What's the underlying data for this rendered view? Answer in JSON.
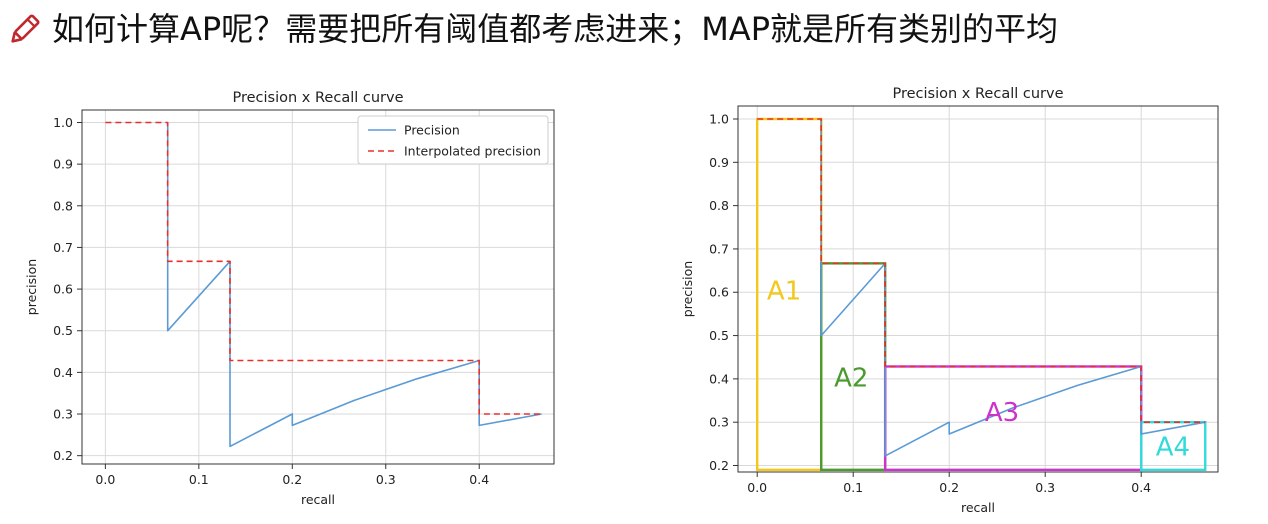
{
  "header": {
    "title": "如何计算AP呢？需要把所有阈值都考虑进来；MAP就是所有类别的平均",
    "icon": "pencil-icon"
  },
  "chart_data": [
    {
      "type": "line",
      "title": "Precision x Recall curve",
      "xlabel": "recall",
      "ylabel": "precision",
      "xlim": [
        -0.025,
        0.48
      ],
      "ylim": [
        0.18,
        1.03
      ],
      "xticks": [
        0.0,
        0.1,
        0.2,
        0.3,
        0.4
      ],
      "xticklabels": [
        "0.0",
        "0.1",
        "0.2",
        "0.3",
        "0.4"
      ],
      "yticks": [
        0.2,
        0.3,
        0.4,
        0.5,
        0.6,
        0.7,
        0.8,
        0.9,
        1.0
      ],
      "yticklabels": [
        "0.2",
        "0.3",
        "0.4",
        "0.5",
        "0.6",
        "0.7",
        "0.8",
        "0.9",
        "1.0"
      ],
      "grid": true,
      "legend": "upper-right",
      "series": [
        {
          "name": "Precision",
          "style": "solid",
          "color": "#5b9bd5",
          "x": [
            0.0667,
            0.0667,
            0.1333,
            0.1333,
            0.1333,
            0.2,
            0.2,
            0.2667,
            0.3333,
            0.4,
            0.4,
            0.4667
          ],
          "y": [
            1.0,
            0.5,
            0.6667,
            0.4286,
            0.2222,
            0.3,
            0.2727,
            0.3333,
            0.3846,
            0.4286,
            0.2727,
            0.3
          ]
        },
        {
          "name": "Interpolated precision",
          "style": "dashed",
          "color": "#e8302b",
          "x": [
            0.0,
            0.0667,
            0.0667,
            0.1333,
            0.1333,
            0.4,
            0.4,
            0.4667
          ],
          "y": [
            1.0,
            1.0,
            0.6667,
            0.6667,
            0.4286,
            0.4286,
            0.3,
            0.3
          ]
        }
      ]
    },
    {
      "type": "line",
      "title": "Precision x Recall curve",
      "xlabel": "recall",
      "ylabel": "precision",
      "xlim": [
        -0.02,
        0.48
      ],
      "ylim": [
        0.185,
        1.03
      ],
      "xticks": [
        0.0,
        0.1,
        0.2,
        0.3,
        0.4
      ],
      "xticklabels": [
        "0.0",
        "0.1",
        "0.2",
        "0.3",
        "0.4"
      ],
      "yticks": [
        0.2,
        0.3,
        0.4,
        0.5,
        0.6,
        0.7,
        0.8,
        0.9,
        1.0
      ],
      "yticklabels": [
        "0.2",
        "0.3",
        "0.4",
        "0.5",
        "0.6",
        "0.7",
        "0.8",
        "0.9",
        "1.0"
      ],
      "grid": true,
      "series": [
        {
          "style": "solid",
          "color": "#5b9bd5",
          "x": [
            0.0667,
            0.0667,
            0.1333,
            0.1333,
            0.1333,
            0.2,
            0.2,
            0.2667,
            0.3333,
            0.4,
            0.4,
            0.4667
          ],
          "y": [
            1.0,
            0.5,
            0.6667,
            0.4286,
            0.2222,
            0.3,
            0.2727,
            0.3333,
            0.3846,
            0.4286,
            0.2727,
            0.3
          ]
        },
        {
          "style": "dashed",
          "color": "#e8302b",
          "x": [
            0.0,
            0.0667,
            0.0667,
            0.1333,
            0.1333,
            0.4,
            0.4,
            0.4667
          ],
          "y": [
            1.0,
            1.0,
            0.6667,
            0.6667,
            0.4286,
            0.4286,
            0.3,
            0.3
          ]
        }
      ],
      "areas": [
        {
          "label": "A1",
          "color": "#f2c81a",
          "x0": 0.0,
          "x1": 0.0667,
          "y0": 0.19,
          "y1": 1.0,
          "label_x": 0.028,
          "label_y": 0.6
        },
        {
          "label": "A2",
          "color": "#4a9a2e",
          "x0": 0.0667,
          "x1": 0.1333,
          "y0": 0.19,
          "y1": 0.6667,
          "label_x": 0.098,
          "label_y": 0.4
        },
        {
          "label": "A3",
          "color": "#cc33cc",
          "x0": 0.1333,
          "x1": 0.4,
          "y0": 0.19,
          "y1": 0.4286,
          "label_x": 0.255,
          "label_y": 0.32
        },
        {
          "label": "A4",
          "color": "#33dada",
          "x0": 0.4,
          "x1": 0.4667,
          "y0": 0.19,
          "y1": 0.3,
          "label_x": 0.433,
          "label_y": 0.24
        }
      ]
    }
  ]
}
